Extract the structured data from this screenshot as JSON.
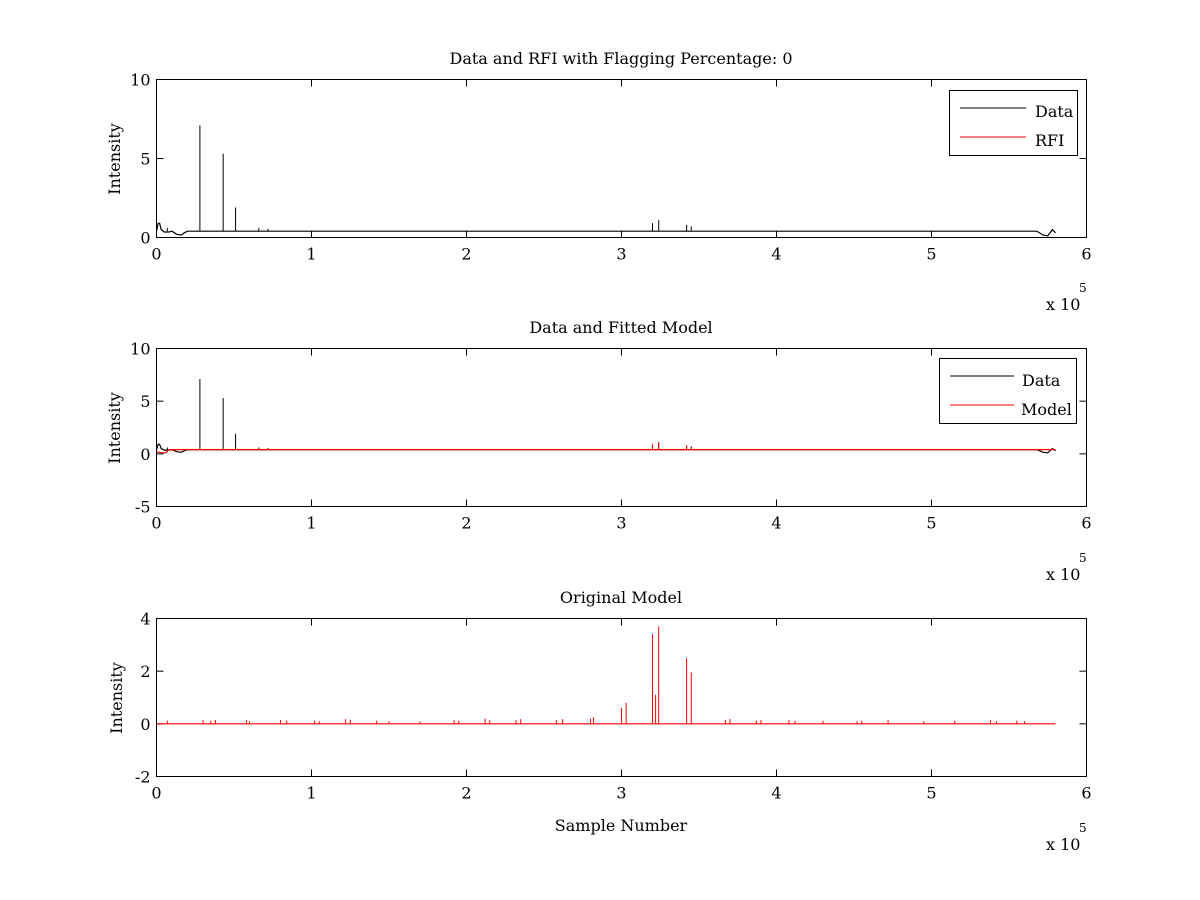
{
  "figure": {
    "background": "#ffffff",
    "axes_color": "#000000"
  },
  "chart_data": [
    {
      "type": "line",
      "title": "Data and RFI with Flagging Percentage: 0",
      "xlabel": "",
      "ylabel": "Intensity",
      "xlim": [
        0,
        6
      ],
      "ylim": [
        0,
        10
      ],
      "xticks": [
        0,
        1,
        2,
        3,
        4,
        5,
        6
      ],
      "yticks": [
        0,
        5,
        10
      ],
      "x_exponent": {
        "base": "x 10",
        "power": "5"
      },
      "legend": {
        "placement": "top-right",
        "entries": [
          "Data",
          "RFI"
        ]
      },
      "series": [
        {
          "name": "Data",
          "color": "#000000",
          "baseline": 0.4,
          "start_curve": [
            [
              0,
              0.4
            ],
            [
              0.01,
              0.9
            ],
            [
              0.02,
              0.9
            ],
            [
              0.03,
              0.5
            ],
            [
              0.05,
              0.35
            ],
            [
              0.08,
              0.35
            ],
            [
              0.1,
              0.4
            ],
            [
              0.13,
              0.2
            ],
            [
              0.16,
              0.15
            ],
            [
              0.18,
              0.3
            ],
            [
              0.2,
              0.4
            ]
          ],
          "end_curve": [
            [
              5.68,
              0.4
            ],
            [
              5.72,
              0.15
            ],
            [
              5.75,
              0.1
            ],
            [
              5.78,
              0.5
            ],
            [
              5.8,
              0.3
            ]
          ],
          "end_x": 5.8,
          "spikes": [
            [
              0.07,
              0.6
            ],
            [
              0.28,
              7.1
            ],
            [
              0.43,
              5.3
            ],
            [
              0.51,
              1.9
            ],
            [
              0.66,
              0.6
            ],
            [
              0.72,
              0.55
            ],
            [
              3.2,
              0.9
            ],
            [
              3.24,
              1.1
            ],
            [
              3.42,
              0.8
            ],
            [
              3.45,
              0.7
            ]
          ]
        },
        {
          "name": "RFI",
          "color": "#ff0000",
          "points": []
        }
      ]
    },
    {
      "type": "line",
      "title": "Data and Fitted Model",
      "xlabel": "",
      "ylabel": "Intensity",
      "xlim": [
        0,
        6
      ],
      "ylim": [
        -5,
        10
      ],
      "xticks": [
        0,
        1,
        2,
        3,
        4,
        5,
        6
      ],
      "yticks": [
        -5,
        0,
        5,
        10
      ],
      "x_exponent": {
        "base": "x 10",
        "power": "5"
      },
      "legend": {
        "placement": "top-right",
        "entries": [
          "Data",
          "Model"
        ]
      },
      "series": [
        {
          "name": "Data",
          "color": "#000000",
          "baseline": 0.4,
          "start_curve": [
            [
              0,
              0.4
            ],
            [
              0.01,
              0.9
            ],
            [
              0.02,
              0.9
            ],
            [
              0.03,
              0.5
            ],
            [
              0.05,
              0.35
            ],
            [
              0.08,
              0.35
            ],
            [
              0.1,
              0.4
            ],
            [
              0.13,
              0.2
            ],
            [
              0.16,
              0.15
            ],
            [
              0.18,
              0.3
            ],
            [
              0.2,
              0.4
            ]
          ],
          "end_curve": [
            [
              5.68,
              0.4
            ],
            [
              5.72,
              0.15
            ],
            [
              5.75,
              0.1
            ],
            [
              5.78,
              0.5
            ],
            [
              5.8,
              0.3
            ]
          ],
          "end_x": 5.8,
          "spikes": [
            [
              0.07,
              0.6
            ],
            [
              0.28,
              7.1
            ],
            [
              0.43,
              5.3
            ],
            [
              0.51,
              1.9
            ],
            [
              0.66,
              0.6
            ],
            [
              0.72,
              0.55
            ],
            [
              3.2,
              0.9
            ],
            [
              3.24,
              1.1
            ],
            [
              3.42,
              0.8
            ],
            [
              3.45,
              0.7
            ]
          ]
        },
        {
          "name": "Model",
          "color": "#ff0000",
          "baseline": 0.4,
          "start_curve": [
            [
              0,
              0.2
            ],
            [
              0.03,
              0.1
            ],
            [
              0.06,
              0.1
            ],
            [
              0.08,
              0.4
            ]
          ],
          "end_curve": [],
          "end_x": 5.8,
          "spikes": [
            [
              3.2,
              0.9
            ],
            [
              3.24,
              1.1
            ],
            [
              3.42,
              0.8
            ],
            [
              3.45,
              0.7
            ]
          ]
        }
      ]
    },
    {
      "type": "line",
      "title": "Original Model",
      "xlabel": "Sample Number",
      "ylabel": "Intensity",
      "xlim": [
        0,
        6
      ],
      "ylim": [
        -2,
        4
      ],
      "xticks": [
        0,
        1,
        2,
        3,
        4,
        5,
        6
      ],
      "yticks": [
        -2,
        0,
        2,
        4
      ],
      "x_exponent": {
        "base": "x 10",
        "power": "5"
      },
      "legend": null,
      "series": [
        {
          "color": "#ff0000",
          "baseline": 0,
          "start_curve": [],
          "end_curve": [],
          "end_x": 5.8,
          "spikes": [
            [
              0.07,
              0.12
            ],
            [
              0.3,
              0.15
            ],
            [
              0.35,
              0.12
            ],
            [
              0.38,
              0.15
            ],
            [
              0.58,
              0.15
            ],
            [
              0.6,
              0.1
            ],
            [
              0.8,
              0.15
            ],
            [
              0.84,
              0.12
            ],
            [
              1.02,
              0.12
            ],
            [
              1.05,
              0.1
            ],
            [
              1.22,
              0.18
            ],
            [
              1.25,
              0.15
            ],
            [
              1.42,
              0.12
            ],
            [
              1.5,
              0.1
            ],
            [
              1.7,
              0.1
            ],
            [
              1.92,
              0.15
            ],
            [
              1.95,
              0.12
            ],
            [
              2.12,
              0.2
            ],
            [
              2.15,
              0.15
            ],
            [
              2.32,
              0.15
            ],
            [
              2.35,
              0.18
            ],
            [
              2.58,
              0.15
            ],
            [
              2.62,
              0.18
            ],
            [
              2.8,
              0.2
            ],
            [
              2.82,
              0.25
            ],
            [
              3.0,
              0.6
            ],
            [
              3.03,
              0.8
            ],
            [
              3.2,
              3.4
            ],
            [
              3.22,
              1.1
            ],
            [
              3.24,
              3.7
            ],
            [
              3.42,
              2.5
            ],
            [
              3.45,
              1.95
            ],
            [
              3.67,
              0.15
            ],
            [
              3.7,
              0.18
            ],
            [
              3.87,
              0.12
            ],
            [
              3.9,
              0.15
            ],
            [
              4.08,
              0.15
            ],
            [
              4.12,
              0.12
            ],
            [
              4.3,
              0.12
            ],
            [
              4.52,
              0.1
            ],
            [
              4.55,
              0.12
            ],
            [
              4.72,
              0.15
            ],
            [
              4.95,
              0.1
            ],
            [
              5.15,
              0.12
            ],
            [
              5.38,
              0.15
            ],
            [
              5.42,
              0.1
            ],
            [
              5.55,
              0.12
            ],
            [
              5.6,
              0.1
            ]
          ]
        }
      ]
    }
  ]
}
